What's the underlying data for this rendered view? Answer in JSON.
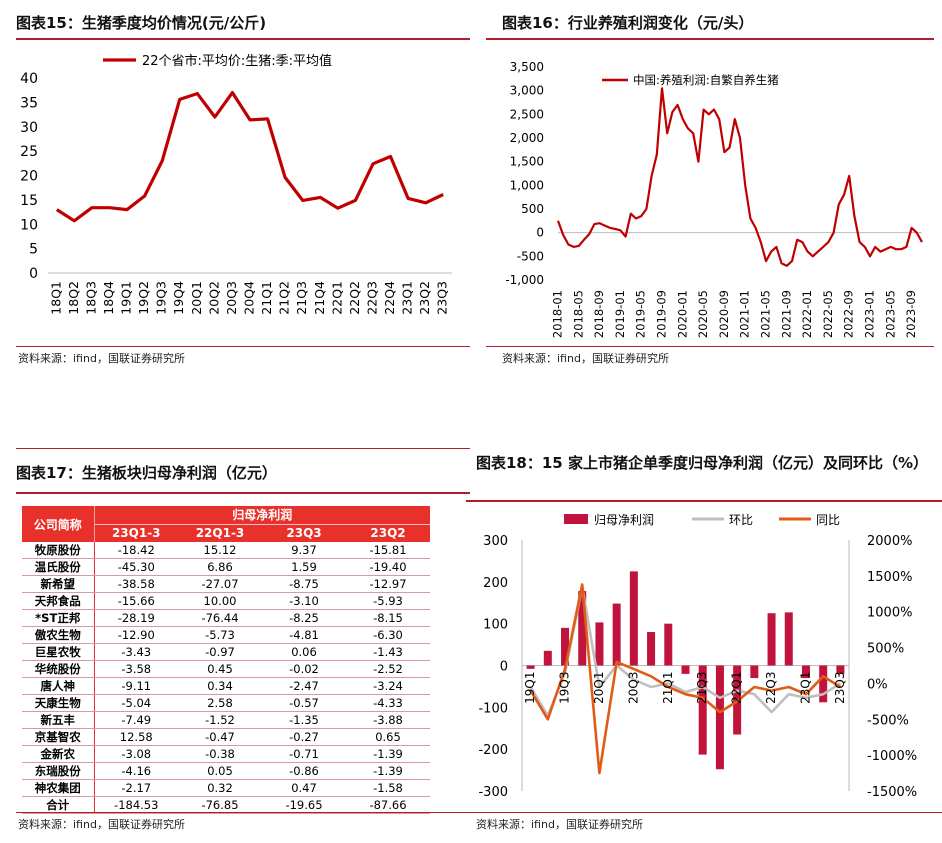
{
  "chart_data": [
    {
      "type": "line",
      "title": "图表15：生猪季度均价情况(元/公斤)",
      "categories": [
        "18Q1",
        "18Q2",
        "18Q3",
        "18Q4",
        "19Q1",
        "19Q2",
        "19Q3",
        "19Q4",
        "20Q1",
        "20Q2",
        "20Q3",
        "20Q4",
        "21Q1",
        "21Q2",
        "21Q3",
        "21Q4",
        "22Q1",
        "22Q2",
        "22Q3",
        "22Q4",
        "23Q1",
        "23Q2",
        "23Q3"
      ],
      "series": [
        {
          "name": "22个省市:平均价:生猪:季:平均值",
          "values": [
            13,
            10.7,
            13.4,
            13.4,
            13,
            15.8,
            23,
            35.6,
            36.8,
            32,
            37,
            31.4,
            31.6,
            19.6,
            14.9,
            15.5,
            13.3,
            14.9,
            22.4,
            23.9,
            15.3,
            14.4,
            16.1
          ]
        }
      ],
      "ylim": [
        0,
        40
      ],
      "yticks": [
        "0",
        "5",
        "10",
        "15",
        "20",
        "25",
        "30",
        "35",
        "40"
      ],
      "color": "#c00000",
      "source": "资料来源：ifind，国联证券研究所"
    },
    {
      "type": "line",
      "title": "图表16：行业养殖利润变化（元/头）",
      "series": [
        {
          "name": "中国:养殖利润:自繁自养生猪",
          "x": [
            "2018-01",
            "2018-02",
            "2018-03",
            "2018-04",
            "2018-05",
            "2018-06",
            "2018-07",
            "2018-08",
            "2018-09",
            "2018-10",
            "2018-11",
            "2018-12",
            "2019-01",
            "2019-02",
            "2019-03",
            "2019-04",
            "2019-05",
            "2019-06",
            "2019-07",
            "2019-08",
            "2019-09",
            "2019-10",
            "2019-11",
            "2019-12",
            "2020-01",
            "2020-02",
            "2020-03",
            "2020-04",
            "2020-05",
            "2020-06",
            "2020-07",
            "2020-08",
            "2020-09",
            "2020-10",
            "2020-11",
            "2020-12",
            "2021-01",
            "2021-02",
            "2021-03",
            "2021-04",
            "2021-05",
            "2021-06",
            "2021-07",
            "2021-08",
            "2021-09",
            "2021-10",
            "2021-11",
            "2021-12",
            "2022-01",
            "2022-02",
            "2022-03",
            "2022-04",
            "2022-05",
            "2022-06",
            "2022-07",
            "2022-08",
            "2022-09",
            "2022-10",
            "2022-11",
            "2022-12",
            "2023-01",
            "2023-02",
            "2023-03",
            "2023-04",
            "2023-05",
            "2023-06",
            "2023-07",
            "2023-08",
            "2023-09",
            "2023-10",
            "2023-11"
          ],
          "values": [
            250,
            -50,
            -250,
            -300,
            -280,
            -150,
            -30,
            180,
            200,
            150,
            100,
            80,
            50,
            -80,
            400,
            300,
            350,
            500,
            1200,
            1650,
            3050,
            2100,
            2550,
            2700,
            2400,
            2200,
            2100,
            1500,
            2600,
            2500,
            2600,
            2400,
            1700,
            1800,
            2400,
            2000,
            1000,
            300,
            100,
            -200,
            -600,
            -400,
            -300,
            -650,
            -700,
            -600,
            -150,
            -200,
            -400,
            -500,
            -400,
            -300,
            -200,
            0,
            600,
            800,
            1200,
            350,
            -200,
            -300,
            -500,
            -300,
            -400,
            -350,
            -300,
            -350,
            -350,
            -300,
            100,
            0,
            -200
          ]
        }
      ],
      "xticks": [
        "2018-01",
        "2018-05",
        "2018-09",
        "2019-01",
        "2019-05",
        "2019-09",
        "2020-01",
        "2020-05",
        "2020-09",
        "2021-01",
        "2021-05",
        "2021-09",
        "2022-01",
        "2022-05",
        "2022-09",
        "2023-01",
        "2023-05",
        "2023-09"
      ],
      "ylim": [
        -1000,
        3500
      ],
      "yticks": [
        "-1,000",
        "-500",
        "0",
        "500",
        "1,000",
        "1,500",
        "2,000",
        "2,500",
        "3,000",
        "3,500"
      ],
      "color": "#c00000",
      "source": "资料来源：ifind，国联证券研究所"
    },
    {
      "type": "table",
      "title": "图表17：生猪板块归母净利润（亿元）",
      "group_header": "归母净利润",
      "columns": [
        "公司简称",
        "23Q1-3",
        "22Q1-3",
        "23Q3",
        "23Q2"
      ],
      "rows": [
        [
          "牧原股份",
          "-18.42",
          "15.12",
          "9.37",
          "-15.81"
        ],
        [
          "温氏股份",
          "-45.30",
          "6.86",
          "1.59",
          "-19.40"
        ],
        [
          "新希望",
          "-38.58",
          "-27.07",
          "-8.75",
          "-12.97"
        ],
        [
          "天邦食品",
          "-15.66",
          "10.00",
          "-3.10",
          "-5.93"
        ],
        [
          "*ST正邦",
          "-28.19",
          "-76.44",
          "-8.25",
          "-8.15"
        ],
        [
          "傲农生物",
          "-12.90",
          "-5.73",
          "-4.81",
          "-6.30"
        ],
        [
          "巨星农牧",
          "-3.43",
          "-0.97",
          "0.06",
          "-1.43"
        ],
        [
          "华统股份",
          "-3.58",
          "0.45",
          "-0.02",
          "-2.52"
        ],
        [
          "唐人神",
          "-9.11",
          "0.34",
          "-2.47",
          "-3.24"
        ],
        [
          "天康生物",
          "-5.04",
          "2.58",
          "-0.57",
          "-4.33"
        ],
        [
          "新五丰",
          "-7.49",
          "-1.52",
          "-1.35",
          "-3.88"
        ],
        [
          "京基智农",
          "12.58",
          "-0.47",
          "-0.27",
          "0.65"
        ],
        [
          "金新农",
          "-3.08",
          "-0.38",
          "-0.71",
          "-1.39"
        ],
        [
          "东瑞股份",
          "-4.16",
          "0.05",
          "-0.86",
          "-1.39"
        ],
        [
          "神农集团",
          "-2.17",
          "0.32",
          "0.47",
          "-1.58"
        ],
        [
          "合计",
          "-184.53",
          "-76.85",
          "-19.65",
          "-87.66"
        ]
      ],
      "header_color": "#e8312b",
      "source": "资料来源：ifind，国联证券研究所"
    },
    {
      "type": "bar",
      "title": "图表18：15 家上市猪企单季度归母净利润（亿元）及同环比（%）",
      "categories": [
        "19Q1",
        "19Q2",
        "19Q3",
        "19Q4",
        "20Q1",
        "20Q2",
        "20Q3",
        "20Q4",
        "21Q1",
        "21Q2",
        "21Q3",
        "21Q4",
        "22Q1",
        "22Q2",
        "22Q3",
        "22Q4",
        "23Q1",
        "23Q2",
        "23Q3"
      ],
      "xticks": [
        "19Q1",
        "19Q3",
        "20Q1",
        "20Q3",
        "21Q1",
        "21Q3",
        "22Q1",
        "22Q3",
        "23Q1",
        "23Q3"
      ],
      "series": [
        {
          "name": "归母净利润",
          "type": "bar",
          "axis": "left",
          "color": "#c0143c",
          "values": [
            -8,
            35,
            90,
            178,
            103,
            148,
            225,
            80,
            100,
            -20,
            -213,
            -248,
            -165,
            -30,
            125,
            127,
            -30,
            -88,
            -20
          ]
        },
        {
          "name": "环比",
          "type": "line",
          "axis": "right",
          "color": "#bfbfbf",
          "values": [
            -50,
            -450,
            150,
            1350,
            -50,
            250,
            50,
            -50,
            0,
            -120,
            -50,
            -200,
            -100,
            -150,
            -400,
            -150,
            -200,
            -150,
            0
          ]
        },
        {
          "name": "同比",
          "type": "line",
          "axis": "right",
          "color": "#e15b17",
          "values": [
            -100,
            -500,
            200,
            1380,
            -1250,
            300,
            200,
            100,
            -50,
            -150,
            -200,
            -400,
            -250,
            -50,
            -100,
            -50,
            -150,
            100,
            -50
          ]
        }
      ],
      "ylim_left": [
        -300,
        300
      ],
      "yticks_left": [
        "-300",
        "-200",
        "-100",
        "0",
        "100",
        "200",
        "300"
      ],
      "ylim_right": [
        -1500,
        2000
      ],
      "yticks_right": [
        "-1500%",
        "-1000%",
        "-500%",
        "0%",
        "500%",
        "1000%",
        "1500%",
        "2000%"
      ],
      "source": "资料来源：ifind，国联证券研究所"
    }
  ]
}
